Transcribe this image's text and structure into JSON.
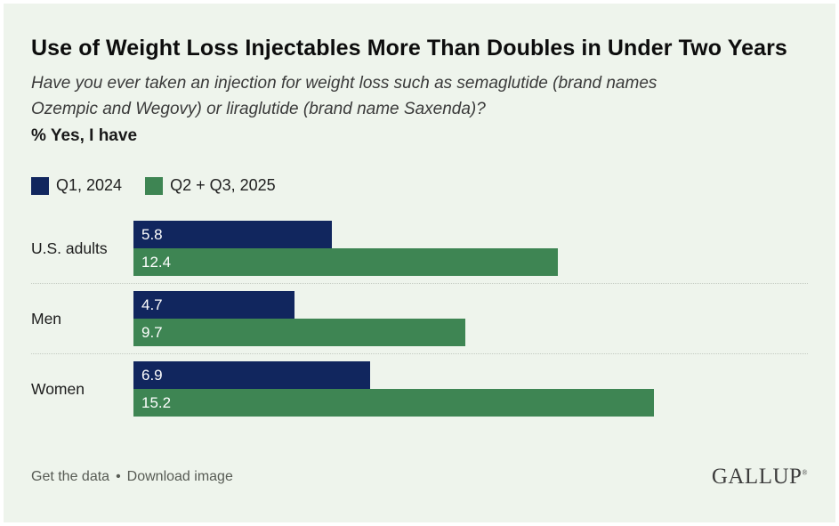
{
  "header": {
    "title": "Use of Weight Loss Injectables More Than Doubles in Under Two Years",
    "question": "Have you ever taken an injection for weight loss such as semaglutide (brand names Ozempic and Wegovy) or liraglutide (brand name Saxenda)?",
    "metric_label": "% Yes, I have"
  },
  "chart_data": {
    "type": "bar",
    "orientation": "horizontal",
    "title": "Use of Weight Loss Injectables More Than Doubles in Under Two Years",
    "categories": [
      "U.S. adults",
      "Men",
      "Women"
    ],
    "series": [
      {
        "name": "Q1, 2024",
        "color": "#11265e",
        "values": [
          5.8,
          4.7,
          6.9
        ]
      },
      {
        "name": "Q2 + Q3, 2025",
        "color": "#3e8553",
        "values": [
          12.4,
          9.7,
          15.2
        ]
      }
    ],
    "value_labels": "inside-left, white",
    "xlim": [
      0,
      15.2
    ],
    "grid": false,
    "legend_position": "top-left",
    "units": "% Yes, I have"
  },
  "footer": {
    "link_get_data": "Get the data",
    "separator": "•",
    "link_download": "Download image",
    "logo": "GALLUP",
    "logo_mark": "®"
  },
  "colors": {
    "background": "#eef4ec",
    "series_q1_2024": "#11265e",
    "series_q2_q3_2025": "#3e8553",
    "separator_dotted": "#c4cbc2"
  }
}
